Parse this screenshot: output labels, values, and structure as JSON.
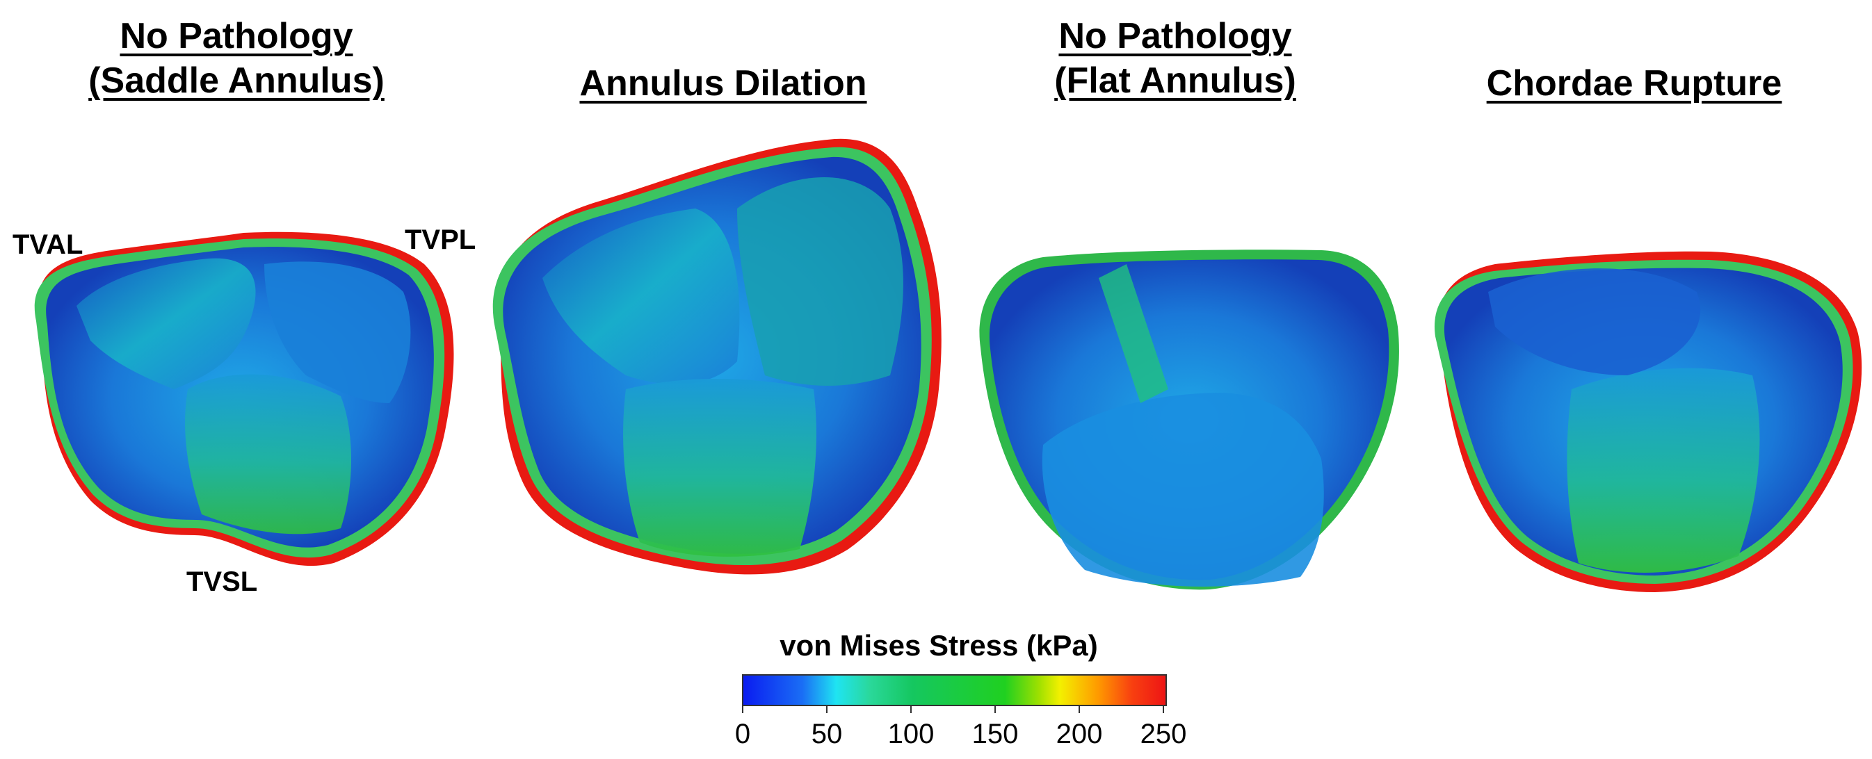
{
  "panels": [
    {
      "title_line1": "No Pathology",
      "title_line2": "(Saddle Annulus)"
    },
    {
      "title_line1": "Annulus Dilation",
      "title_line2": ""
    },
    {
      "title_line1": "No Pathology",
      "title_line2": "(Flat Annulus)"
    },
    {
      "title_line1": "Chordae Rupture",
      "title_line2": ""
    }
  ],
  "labels": {
    "anterior": "TVAL",
    "posterior": "TVPL",
    "septal": "TVSL"
  },
  "colorbar": {
    "title": "von Mises Stress (kPa)",
    "ticks": [
      "0",
      "50",
      "100",
      "150",
      "200",
      "250"
    ],
    "min": 0,
    "max": 250,
    "colors": [
      "#0a1cf0",
      "#1fe4f2",
      "#15c760",
      "#f3f000",
      "#ee1515"
    ]
  }
}
